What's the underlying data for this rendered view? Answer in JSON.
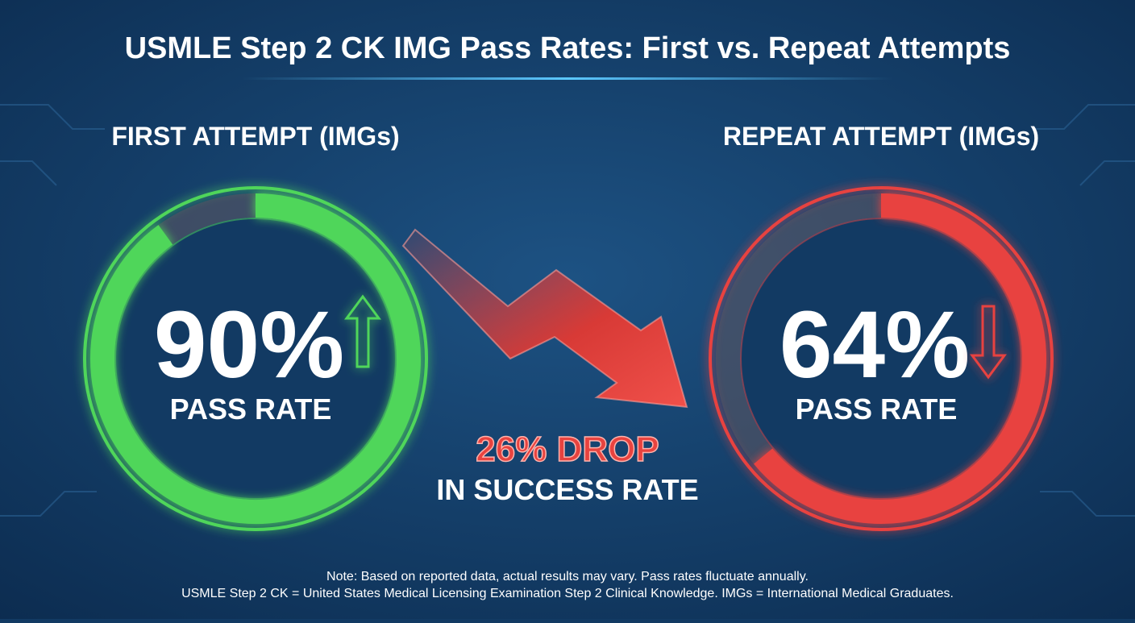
{
  "title": "USMLE Step 2 CK IMG Pass Rates: First vs. Repeat Attempts",
  "chart_data": [
    {
      "type": "gauge",
      "title": "FIRST ATTEMPT (IMGs)",
      "values": [
        90
      ],
      "value_labels": [
        "90%"
      ],
      "caption": "PASS RATE",
      "color": "#4fd65a",
      "trend": "up",
      "ylim": [
        0,
        100
      ]
    },
    {
      "type": "gauge",
      "title": "REPEAT ATTEMPT (IMGs)",
      "values": [
        64
      ],
      "value_labels": [
        "64%"
      ],
      "caption": "PASS RATE",
      "color": "#e8433f",
      "trend": "down",
      "ylim": [
        0,
        100
      ]
    }
  ],
  "annotation": {
    "headline": "26% DROP",
    "subline": "IN SUCCESS RATE"
  },
  "notes": [
    "Note: Based on reported data, actual results may vary. Pass rates fluctuate annually.",
    "USMLE Step 2 CK = United States Medical Licensing Examination Step 2 Clinical Knowledge. IMGs = International Medical Graduates."
  ]
}
